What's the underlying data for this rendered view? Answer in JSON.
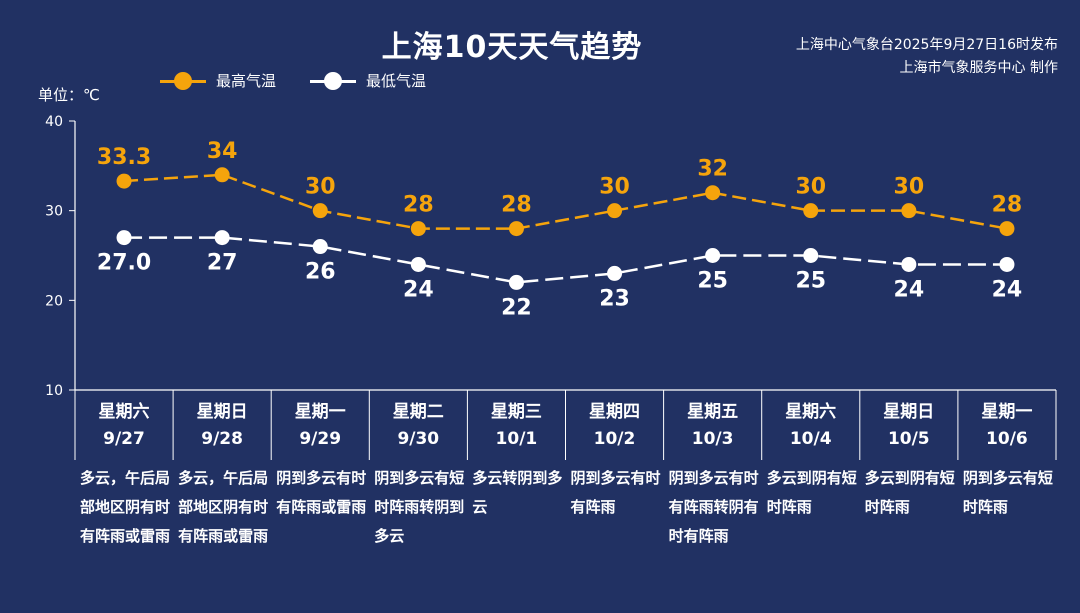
{
  "title": "上海10天天气趋势",
  "source": {
    "line1": "上海中心气象台2025年9月27日16时发布",
    "line2": "上海市气象服务中心 制作"
  },
  "unit_label": "单位：℃",
  "colors": {
    "background": "#213163",
    "high": "#f5a40c",
    "low": "#ffffff",
    "axis": "#ffffff"
  },
  "chart_data": {
    "type": "line",
    "title": "上海10天天气趋势",
    "ylabel": "单位：℃",
    "ylim": [
      10,
      40
    ],
    "yticks": [
      10,
      20,
      30,
      40
    ],
    "grid": false,
    "legend_position": "top-left",
    "categories": [
      "9/27",
      "9/28",
      "9/29",
      "9/30",
      "10/1",
      "10/2",
      "10/3",
      "10/4",
      "10/5",
      "10/6"
    ],
    "weekdays": [
      "星期六",
      "星期日",
      "星期一",
      "星期二",
      "星期三",
      "星期四",
      "星期五",
      "星期六",
      "星期日",
      "星期一"
    ],
    "series": [
      {
        "name": "最高气温",
        "values": [
          33.3,
          34,
          30,
          28,
          28,
          30,
          32,
          30,
          30,
          28
        ],
        "labels": [
          "33.3",
          "34",
          "30",
          "28",
          "28",
          "30",
          "32",
          "30",
          "30",
          "28"
        ]
      },
      {
        "name": "最低气温",
        "values": [
          27.0,
          27,
          26,
          24,
          22,
          23,
          25,
          25,
          24,
          24
        ],
        "labels": [
          "27.0",
          "27",
          "26",
          "24",
          "22",
          "23",
          "25",
          "25",
          "24",
          "24"
        ]
      }
    ],
    "descriptions": [
      "多云，午后局部地区阴有时有阵雨或雷雨",
      "多云，午后局部地区阴有时有阵雨或雷雨",
      "阴到多云有时有阵雨或雷雨",
      "阴到多云有短时阵雨转阴到多云",
      "多云转阴到多云",
      "阴到多云有时有阵雨",
      "阴到多云有时有阵雨转阴有时有阵雨",
      "多云到阴有短时阵雨",
      "多云到阴有短时阵雨",
      "阴到多云有短时阵雨"
    ]
  }
}
